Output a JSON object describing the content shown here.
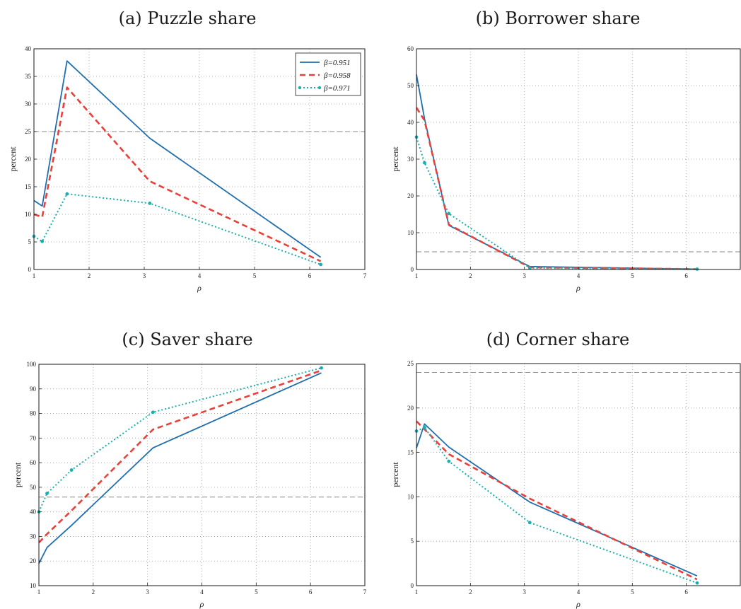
{
  "colors": {
    "s1": "#1f6fae",
    "s2": "#e8413b",
    "s3": "#1aaead",
    "ref": "#8a8a8a"
  },
  "legend": {
    "labels": [
      "β=0.951",
      "β=0.958",
      "β=0.971"
    ]
  },
  "chart_data": [
    {
      "type": "line",
      "panel_label": "(a) Puzzle share",
      "xlabel": "ρ",
      "ylabel": "percent",
      "xlim": [
        1,
        7
      ],
      "ylim": [
        0,
        40
      ],
      "xticks": [
        1,
        2,
        3,
        4,
        5,
        6,
        7
      ],
      "yticks": [
        0,
        5,
        10,
        15,
        20,
        25,
        30,
        35,
        40
      ],
      "grid": true,
      "legend": "top-right",
      "reference_line": 25,
      "series": [
        {
          "name": "β=0.951",
          "style": "solid",
          "x": [
            1.0,
            1.15,
            1.6,
            3.1,
            6.2
          ],
          "y": [
            12.5,
            11.5,
            37.8,
            23.8,
            2.2
          ]
        },
        {
          "name": "β=0.958",
          "style": "dashed",
          "x": [
            1.0,
            1.15,
            1.6,
            3.1,
            6.2
          ],
          "y": [
            10.0,
            9.5,
            33.0,
            16.0,
            1.5
          ]
        },
        {
          "name": "β=0.971",
          "style": "dotted",
          "x": [
            1.0,
            1.15,
            1.6,
            3.1,
            6.2
          ],
          "y": [
            6.0,
            5.1,
            13.7,
            12.0,
            0.9
          ]
        }
      ]
    },
    {
      "type": "line",
      "panel_label": "(b) Borrower share",
      "xlabel": "ρ",
      "ylabel": "percent",
      "xlim": [
        1,
        7
      ],
      "ylim": [
        0,
        60
      ],
      "xticks": [
        1,
        2,
        3,
        4,
        5,
        6
      ],
      "yticks": [
        0,
        10,
        20,
        30,
        40,
        50,
        60
      ],
      "grid": true,
      "reference_line": 4.8,
      "series": [
        {
          "name": "β=0.951",
          "style": "solid",
          "x": [
            1.0,
            1.15,
            1.6,
            3.1,
            6.2
          ],
          "y": [
            53.0,
            41.0,
            12.0,
            0.8,
            0.1
          ]
        },
        {
          "name": "β=0.958",
          "style": "dashed",
          "x": [
            1.0,
            1.15,
            1.6,
            3.1,
            6.2
          ],
          "y": [
            44.0,
            40.5,
            12.2,
            0.6,
            0.1
          ]
        },
        {
          "name": "β=0.971",
          "style": "dotted",
          "x": [
            1.0,
            1.15,
            1.6,
            3.1,
            6.2
          ],
          "y": [
            36.0,
            29.0,
            15.2,
            0.4,
            0.1
          ]
        }
      ]
    },
    {
      "type": "line",
      "panel_label": "(c) Saver share",
      "xlabel": "ρ",
      "ylabel": "percent",
      "xlim": [
        1,
        7
      ],
      "ylim": [
        10,
        100
      ],
      "xticks": [
        1,
        2,
        3,
        4,
        5,
        6,
        7
      ],
      "yticks": [
        10,
        20,
        30,
        40,
        50,
        60,
        70,
        80,
        90,
        100
      ],
      "grid": true,
      "reference_line": 46,
      "series": [
        {
          "name": "β=0.951",
          "style": "solid",
          "x": [
            1.0,
            1.15,
            1.6,
            3.1,
            6.2
          ],
          "y": [
            19.0,
            25.5,
            34.5,
            66.0,
            96.5
          ]
        },
        {
          "name": "β=0.958",
          "style": "dashed",
          "x": [
            1.0,
            1.15,
            1.6,
            3.1,
            6.2
          ],
          "y": [
            27.5,
            31.0,
            40.5,
            73.5,
            97.5
          ]
        },
        {
          "name": "β=0.971",
          "style": "dotted",
          "x": [
            1.0,
            1.15,
            1.6,
            3.1,
            6.2
          ],
          "y": [
            40.0,
            47.5,
            57.0,
            80.5,
            98.5
          ]
        }
      ]
    },
    {
      "type": "line",
      "panel_label": "(d) Corner share",
      "xlabel": "ρ",
      "ylabel": "percent",
      "xlim": [
        1,
        7
      ],
      "ylim": [
        0,
        25
      ],
      "xticks": [
        1,
        2,
        3,
        4,
        5,
        6
      ],
      "yticks": [
        0,
        5,
        10,
        15,
        20,
        25
      ],
      "grid": true,
      "reference_line": 24,
      "series": [
        {
          "name": "β=0.951",
          "style": "solid",
          "x": [
            1.0,
            1.15,
            1.6,
            3.1,
            6.2
          ],
          "y": [
            15.5,
            18.2,
            15.6,
            9.4,
            1.1
          ]
        },
        {
          "name": "β=0.958",
          "style": "dashed",
          "x": [
            1.0,
            1.15,
            1.6,
            3.1,
            6.2
          ],
          "y": [
            18.5,
            17.6,
            14.8,
            9.8,
            0.7
          ]
        },
        {
          "name": "β=0.971",
          "style": "dotted",
          "x": [
            1.0,
            1.15,
            1.6,
            3.1,
            6.2
          ],
          "y": [
            17.4,
            17.8,
            14.0,
            7.1,
            0.3
          ]
        }
      ]
    }
  ]
}
